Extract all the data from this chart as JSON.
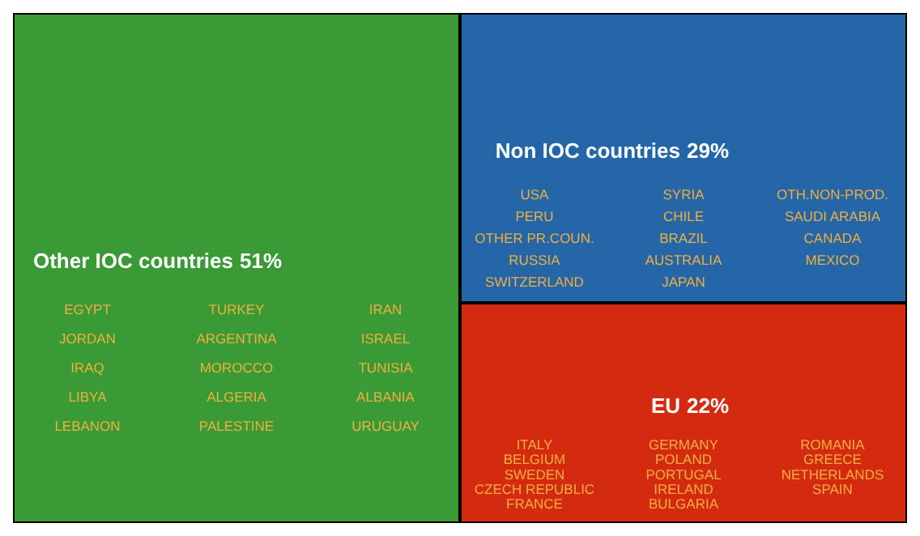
{
  "chart_data": {
    "type": "other",
    "categories": [
      "Other IOC countries",
      "Non IOC countries",
      "EU"
    ],
    "values": [
      51,
      29,
      22
    ],
    "value_labels": [
      "51%",
      "29%",
      "22%"
    ],
    "colors": [
      "#3a9a35",
      "#2466a8",
      "#d42a10"
    ],
    "annotations": [
      {
        "text": "EGYPT",
        "x": "Other IOC countries"
      },
      {
        "text": "TURKEY",
        "x": "Other IOC countries"
      },
      {
        "text": "IRAN",
        "x": "Other IOC countries"
      },
      {
        "text": "JORDAN",
        "x": "Other IOC countries"
      },
      {
        "text": "ARGENTINA",
        "x": "Other IOC countries"
      },
      {
        "text": "ISRAEL",
        "x": "Other IOC countries"
      },
      {
        "text": "IRAQ",
        "x": "Other IOC countries"
      },
      {
        "text": "MOROCCO",
        "x": "Other IOC countries"
      },
      {
        "text": "TUNISIA",
        "x": "Other IOC countries"
      },
      {
        "text": "LIBYA",
        "x": "Other IOC countries"
      },
      {
        "text": "ALGERIA",
        "x": "Other IOC countries"
      },
      {
        "text": "ALBANIA",
        "x": "Other IOC countries"
      },
      {
        "text": "LEBANON",
        "x": "Other IOC countries"
      },
      {
        "text": "PALESTINE",
        "x": "Other IOC countries"
      },
      {
        "text": "URUGUAY",
        "x": "Other IOC countries"
      },
      {
        "text": "USA",
        "x": "Non IOC countries"
      },
      {
        "text": "SYRIA",
        "x": "Non IOC countries"
      },
      {
        "text": "OTH.NON-PROD.",
        "x": "Non IOC countries"
      },
      {
        "text": "PERU",
        "x": "Non IOC countries"
      },
      {
        "text": "CHILE",
        "x": "Non IOC countries"
      },
      {
        "text": "SAUDI ARABIA",
        "x": "Non IOC countries"
      },
      {
        "text": "OTHER PR.COUN.",
        "x": "Non IOC countries"
      },
      {
        "text": "BRAZIL",
        "x": "Non IOC countries"
      },
      {
        "text": "CANADA",
        "x": "Non IOC countries"
      },
      {
        "text": "RUSSIA",
        "x": "Non IOC countries"
      },
      {
        "text": "AUSTRALIA",
        "x": "Non IOC countries"
      },
      {
        "text": "MEXICO",
        "x": "Non IOC countries"
      },
      {
        "text": "SWITZERLAND",
        "x": "Non IOC countries"
      },
      {
        "text": "JAPAN",
        "x": "Non IOC countries"
      },
      {
        "text": "ITALY",
        "x": "EU"
      },
      {
        "text": "GERMANY",
        "x": "EU"
      },
      {
        "text": "ROMANIA",
        "x": "EU"
      },
      {
        "text": "BELGIUM",
        "x": "EU"
      },
      {
        "text": "POLAND",
        "x": "EU"
      },
      {
        "text": "GREECE",
        "x": "EU"
      },
      {
        "text": "SWEDEN",
        "x": "EU"
      },
      {
        "text": "PORTUGAL",
        "x": "EU"
      },
      {
        "text": "NETHERLANDS",
        "x": "EU"
      },
      {
        "text": "CZECH REPUBLIC",
        "x": "EU"
      },
      {
        "text": "IRELAND",
        "x": "EU"
      },
      {
        "text": "SPAIN",
        "x": "EU"
      },
      {
        "text": "FRANCE",
        "x": "EU"
      },
      {
        "text": "BULGARIA",
        "x": "EU"
      }
    ]
  }
}
